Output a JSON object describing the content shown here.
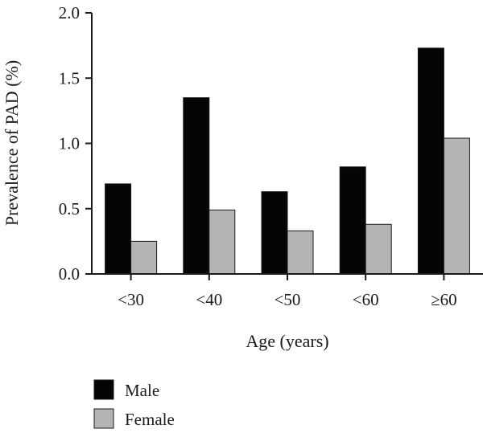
{
  "chart_data": {
    "type": "bar",
    "categories": [
      "<30",
      "<40",
      "<50",
      "<60",
      "≥60"
    ],
    "series": [
      {
        "name": "Male",
        "values": [
          0.69,
          1.35,
          0.63,
          0.82,
          1.73
        ],
        "color": "#050505"
      },
      {
        "name": "Female",
        "values": [
          0.25,
          0.49,
          0.33,
          0.38,
          1.04
        ],
        "color": "#b4b4b4"
      }
    ],
    "xlabel": "Age (years)",
    "ylabel": "Prevalence of PAD (%)",
    "ylim": [
      0,
      2.0
    ],
    "yticks": [
      "0.0",
      "0.5",
      "1.0",
      "1.5",
      "2.0"
    ],
    "grid": false,
    "legend_position": "bottom-left"
  }
}
